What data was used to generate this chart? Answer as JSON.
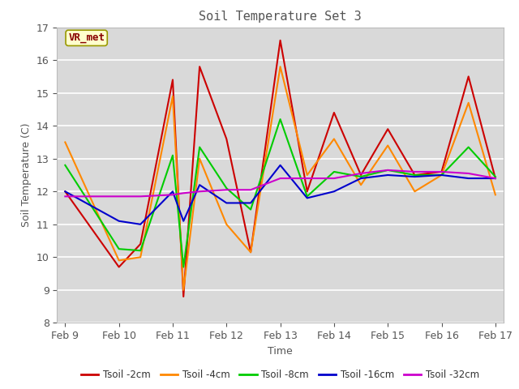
{
  "title": "Soil Temperature Set 3",
  "xlabel": "Time",
  "ylabel": "Soil Temperature (C)",
  "ylim": [
    8.0,
    17.0
  ],
  "yticks": [
    8.0,
    9.0,
    10.0,
    11.0,
    12.0,
    13.0,
    14.0,
    15.0,
    16.0,
    17.0
  ],
  "figure_bg_color": "#ffffff",
  "axes_bg_color": "#d9d9d9",
  "grid_color": "#ffffff",
  "annotation_text": "VR_met",
  "annotation_bbox_facecolor": "#ffffcc",
  "annotation_bbox_edgecolor": "#999900",
  "series": {
    "Tsoil -2cm": {
      "color": "#cc0000",
      "x": [
        0,
        1.0,
        1.4,
        2.0,
        2.2,
        2.5,
        3.0,
        3.45,
        4.0,
        4.5,
        5.0,
        5.5,
        6.0,
        6.5,
        7.0,
        7.5,
        8.0
      ],
      "y": [
        12.0,
        9.7,
        10.4,
        15.4,
        8.8,
        15.8,
        13.6,
        10.15,
        16.6,
        12.0,
        14.4,
        12.5,
        13.9,
        12.5,
        12.6,
        15.5,
        12.4
      ]
    },
    "Tsoil -4cm": {
      "color": "#ff8800",
      "x": [
        0,
        1.0,
        1.4,
        2.0,
        2.2,
        2.5,
        3.0,
        3.45,
        4.0,
        4.5,
        5.0,
        5.5,
        6.0,
        6.5,
        7.0,
        7.5,
        8.0
      ],
      "y": [
        13.5,
        9.9,
        10.0,
        14.9,
        9.0,
        13.0,
        11.0,
        10.15,
        15.8,
        12.5,
        13.6,
        12.2,
        13.4,
        12.0,
        12.5,
        14.7,
        11.9
      ]
    },
    "Tsoil -8cm": {
      "color": "#00cc00",
      "x": [
        0,
        1.0,
        1.4,
        2.0,
        2.2,
        2.5,
        3.0,
        3.45,
        4.0,
        4.5,
        5.0,
        5.5,
        6.0,
        6.5,
        7.0,
        7.5,
        8.0
      ],
      "y": [
        12.8,
        10.25,
        10.2,
        13.1,
        9.7,
        13.35,
        12.1,
        11.45,
        14.2,
        11.85,
        12.6,
        12.45,
        12.65,
        12.5,
        12.5,
        13.35,
        12.45
      ]
    },
    "Tsoil -16cm": {
      "color": "#0000cc",
      "x": [
        0,
        1.0,
        1.4,
        2.0,
        2.2,
        2.5,
        3.0,
        3.45,
        4.0,
        4.5,
        5.0,
        5.5,
        6.0,
        6.5,
        7.0,
        7.5,
        8.0
      ],
      "y": [
        12.0,
        11.1,
        11.0,
        12.0,
        11.1,
        12.2,
        11.65,
        11.65,
        12.8,
        11.8,
        12.0,
        12.4,
        12.5,
        12.45,
        12.5,
        12.4,
        12.4
      ]
    },
    "Tsoil -32cm": {
      "color": "#cc00cc",
      "x": [
        0,
        1.0,
        1.4,
        2.0,
        2.2,
        2.5,
        3.0,
        3.45,
        4.0,
        4.5,
        5.0,
        5.5,
        6.0,
        6.5,
        7.0,
        7.5,
        8.0
      ],
      "y": [
        11.85,
        11.85,
        11.85,
        11.9,
        11.95,
        12.0,
        12.05,
        12.05,
        12.4,
        12.4,
        12.4,
        12.55,
        12.65,
        12.6,
        12.6,
        12.55,
        12.4
      ]
    }
  },
  "xtick_positions": [
    0,
    1,
    2,
    3,
    4,
    5,
    6,
    7,
    8
  ],
  "xtick_labels": [
    "Feb 9",
    "Feb 10",
    "Feb 11",
    "Feb 12",
    "Feb 13",
    "Feb 14",
    "Feb 15",
    "Feb 16",
    "Feb 17"
  ],
  "legend_order": [
    "Tsoil -2cm",
    "Tsoil -4cm",
    "Tsoil -8cm",
    "Tsoil -16cm",
    "Tsoil -32cm"
  ]
}
